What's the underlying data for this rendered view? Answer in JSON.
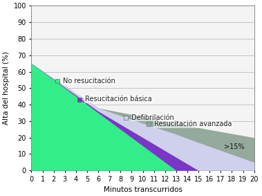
{
  "chart_data": {
    "type": "area",
    "x_label": "Minutos transcurridos",
    "y_label": "Alta del hospital (%)",
    "x": [
      0,
      6,
      9,
      13,
      15,
      20
    ],
    "series": [
      {
        "name": "Resucitación avanzada",
        "color": "#93aa9c",
        "values": [
          65,
          38,
          34,
          29,
          26,
          20
        ]
      },
      {
        "name": "Defibrilación",
        "color": "#cfd0ec",
        "values": [
          65,
          38,
          31,
          22,
          17,
          5
        ]
      },
      {
        "name": "Resucitación básica",
        "color": "#7a36c8",
        "values": [
          65,
          36,
          24,
          8,
          0,
          null
        ]
      },
      {
        "name": "No resucitación",
        "color": "#33ee88",
        "values": [
          65,
          35,
          20,
          0,
          null,
          null
        ]
      }
    ],
    "annotations": [
      ">15%"
    ],
    "xlim": [
      0,
      20
    ],
    "xticks": [
      0,
      1,
      2,
      3,
      4,
      5,
      6,
      7,
      8,
      9,
      10,
      11,
      12,
      13,
      14,
      15,
      16,
      17,
      18,
      19,
      20
    ],
    "ylim": [
      0,
      100
    ],
    "yticks": [
      0,
      10,
      20,
      30,
      40,
      50,
      60,
      70,
      80,
      90,
      100
    ],
    "grid": true
  }
}
